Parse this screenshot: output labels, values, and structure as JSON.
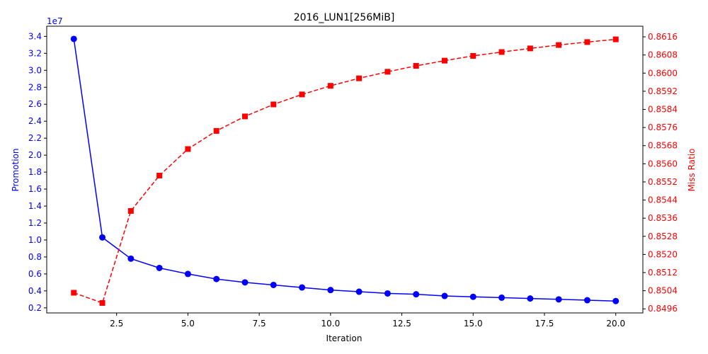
{
  "chart_data": {
    "type": "line",
    "title": "2016_LUN1[256MiB]",
    "xlabel": "Iteration",
    "ylabel_left": "Promotion",
    "ylabel_right": "Miss Ratio",
    "left_axis_multiplier": "1e7",
    "xlim": [
      0.05,
      20.95
    ],
    "ylim_left": [
      1400000,
      35200000
    ],
    "ylim_right": [
      0.84942,
      0.86207
    ],
    "x_ticks": [
      2.5,
      5.0,
      7.5,
      10.0,
      12.5,
      15.0,
      17.5,
      20.0
    ],
    "x_tick_labels": [
      "2.5",
      "5.0",
      "7.5",
      "10.0",
      "12.5",
      "15.0",
      "17.5",
      "20.0"
    ],
    "y_left_ticks": [
      0.2,
      0.4,
      0.6,
      0.8,
      1.0,
      1.2,
      1.4,
      1.6,
      1.8,
      2.0,
      2.2,
      2.4,
      2.6,
      2.8,
      3.0,
      3.2,
      3.4
    ],
    "y_left_tick_labels": [
      "0.2",
      "0.4",
      "0.6",
      "0.8",
      "1.0",
      "1.2",
      "1.4",
      "1.6",
      "1.8",
      "2.0",
      "2.2",
      "2.4",
      "2.6",
      "2.8",
      "3.0",
      "3.2",
      "3.4"
    ],
    "y_right_ticks": [
      0.8496,
      0.8504,
      0.8512,
      0.852,
      0.8528,
      0.8536,
      0.8544,
      0.8552,
      0.856,
      0.8568,
      0.8576,
      0.8584,
      0.8592,
      0.86,
      0.8608,
      0.8616
    ],
    "y_right_tick_labels": [
      "0.8496",
      "0.8504",
      "0.8512",
      "0.8520",
      "0.8528",
      "0.8536",
      "0.8544",
      "0.8552",
      "0.8560",
      "0.8568",
      "0.8576",
      "0.8584",
      "0.8592",
      "0.8600",
      "0.8608",
      "0.8616"
    ],
    "x": [
      1,
      2,
      3,
      4,
      5,
      6,
      7,
      8,
      9,
      10,
      11,
      12,
      13,
      14,
      15,
      16,
      17,
      18,
      19,
      20
    ],
    "series": [
      {
        "axis": "left",
        "color": "#0000ff",
        "marker": "circle",
        "line_style": "solid",
        "values": [
          33700000,
          10300000,
          7800000,
          6700000,
          6000000,
          5400000,
          5000000,
          4700000,
          4400000,
          4100000,
          3900000,
          3700000,
          3600000,
          3400000,
          3300000,
          3200000,
          3100000,
          3000000,
          2900000,
          2800000
        ]
      },
      {
        "axis": "right",
        "color": "#ff0000",
        "marker": "square",
        "line_style": "dashed",
        "values": [
          0.85031,
          0.84986,
          0.85392,
          0.85548,
          0.85665,
          0.85745,
          0.85809,
          0.85862,
          0.85906,
          0.85944,
          0.85977,
          0.86006,
          0.86032,
          0.86055,
          0.86076,
          0.86093,
          0.86109,
          0.86124,
          0.86137,
          0.86149
        ]
      }
    ]
  }
}
